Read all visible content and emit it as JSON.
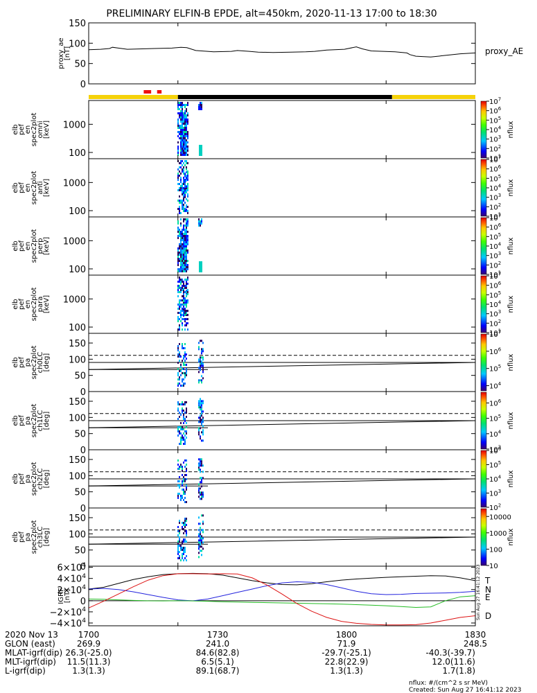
{
  "title": "PRELIMINARY ELFIN-B EPDE, alt=450km, 2020-11-13 17:00 to 18:30",
  "colors": {
    "region_yellow": "#f5d20a",
    "region_black": "#000000",
    "sci_zone_red": "#ee1111",
    "T": "#000000",
    "N": "#2222dd",
    "E": "#22bb22",
    "D": "#dd1111"
  },
  "time_axis": {
    "start": 1700,
    "end": 1830,
    "ticks": [
      "1700",
      "1730",
      "1800",
      "1830"
    ],
    "tick_values": [
      1700,
      1730,
      1800,
      1830
    ]
  },
  "region_bar": [
    {
      "from": 1700,
      "to": 1730,
      "color": "region_yellow"
    },
    {
      "from": 1730,
      "to": 1802,
      "color": "region_black"
    },
    {
      "from": 1802,
      "to": 1830,
      "color": "region_yellow"
    }
  ],
  "sci_zones": [
    {
      "from": 1718.5,
      "to": 1721.0
    },
    {
      "from": 1723.0,
      "to": 1724.5
    }
  ],
  "chart_data": [
    {
      "type": "line",
      "id": "proxy_ae",
      "ylabel": [
        "proxy_ae",
        "[nT]"
      ],
      "legend": "proxy_AE",
      "ylim": [
        0,
        150
      ],
      "yticks": [
        "0",
        "50",
        "100",
        "150"
      ],
      "ytick_values": [
        0,
        50,
        100,
        150
      ],
      "x": [
        1700,
        1704,
        1707,
        1708,
        1710,
        1713,
        1718,
        1722,
        1728,
        1731,
        1733,
        1736,
        1742,
        1748,
        1750,
        1752,
        1754,
        1757,
        1762,
        1768,
        1773,
        1776,
        1780,
        1786,
        1790,
        1792,
        1795,
        1799,
        1803,
        1807,
        1808,
        1810,
        1815,
        1820,
        1825,
        1830
      ],
      "series": [
        {
          "values": [
            84,
            85,
            87,
            90,
            88,
            85,
            86,
            87,
            88,
            90,
            89,
            82,
            79,
            80,
            82,
            81,
            80,
            78,
            77,
            78,
            79,
            80,
            83,
            85,
            91,
            86,
            81,
            80,
            79,
            76,
            72,
            68,
            66,
            70,
            74,
            76
          ]
        }
      ]
    },
    {
      "type": "heatmap",
      "id": "omni",
      "ylabel": [
        "elb",
        "pef",
        "en",
        "spec2plot",
        "omni",
        "[keV]"
      ],
      "yscale": "log",
      "ylim": [
        60,
        7000
      ],
      "yticks": [
        "100",
        "1000"
      ],
      "ytick_values": [
        100,
        1000
      ],
      "colorbar": {
        "label": "nflux",
        "scale": "log",
        "range": [
          10,
          10000000
        ],
        "ticks": [
          "10^7",
          "10^6",
          "10^5",
          "10^4",
          "10^3",
          "10^2",
          "10^1"
        ],
        "tick_values": [
          10000000,
          1000000,
          100000,
          10000,
          1000,
          100,
          10
        ]
      }
    },
    {
      "type": "heatmap",
      "id": "anti",
      "ylabel": [
        "elb",
        "pef",
        "en",
        "spec2plot",
        "anti",
        "[keV]"
      ],
      "yscale": "log",
      "ylim": [
        60,
        7000
      ],
      "yticks": [
        "100",
        "1000"
      ],
      "ytick_values": [
        100,
        1000
      ],
      "colorbar": {
        "label": "nflux",
        "scale": "log",
        "range": [
          10,
          10000000
        ],
        "ticks": [
          "10^7",
          "10^6",
          "10^5",
          "10^4",
          "10^3",
          "10^2",
          "10^1"
        ],
        "tick_values": [
          10000000,
          1000000,
          100000,
          10000,
          1000,
          100,
          10
        ]
      }
    },
    {
      "type": "heatmap",
      "id": "perp",
      "ylabel": [
        "elb",
        "pef",
        "en",
        "spec2plot",
        "perp",
        "[keV]"
      ],
      "yscale": "log",
      "ylim": [
        60,
        7000
      ],
      "yticks": [
        "100",
        "1000"
      ],
      "ytick_values": [
        100,
        1000
      ],
      "colorbar": {
        "label": "nflux",
        "scale": "log",
        "range": [
          10,
          10000000
        ],
        "ticks": [
          "10^7",
          "10^6",
          "10^5",
          "10^4",
          "10^3",
          "10^2",
          "10^1"
        ],
        "tick_values": [
          10000000,
          1000000,
          100000,
          10000,
          1000,
          100,
          10
        ]
      }
    },
    {
      "type": "heatmap",
      "id": "para",
      "ylabel": [
        "elb",
        "pef",
        "en",
        "spec2plot",
        "para",
        "[keV]"
      ],
      "yscale": "log",
      "ylim": [
        60,
        7000
      ],
      "yticks": [
        "100",
        "1000"
      ],
      "ytick_values": [
        100,
        1000
      ],
      "colorbar": {
        "label": "nflux",
        "scale": "log",
        "range": [
          10,
          10000000
        ],
        "ticks": [
          "10^7",
          "10^6",
          "10^5",
          "10^4",
          "10^3",
          "10^2",
          "10^1"
        ],
        "tick_values": [
          10000000,
          1000000,
          100000,
          10000,
          1000,
          100,
          10
        ]
      }
    },
    {
      "type": "heatmap",
      "id": "ch0LC",
      "ylabel": [
        "elb",
        "pef",
        "pa",
        "spec2plot",
        "ch0LC",
        "[deg]"
      ],
      "yscale": "linear",
      "ylim": [
        0,
        180
      ],
      "yticks": [
        "0",
        "50",
        "100",
        "150"
      ],
      "ytick_values": [
        0,
        50,
        100,
        150
      ],
      "colorbar": {
        "label": "nflux",
        "scale": "log",
        "range": [
          5000,
          10000000
        ],
        "ticks": [
          "10^7",
          "10^6",
          "10^5",
          "10^4"
        ],
        "tick_values": [
          10000000,
          1000000,
          100000,
          10000
        ]
      }
    },
    {
      "type": "heatmap",
      "id": "ch1LC",
      "ylabel": [
        "elb",
        "pef",
        "pa",
        "spec2plot",
        "ch1LC",
        "[deg]"
      ],
      "yscale": "linear",
      "ylim": [
        0,
        180
      ],
      "yticks": [
        "0",
        "50",
        "100",
        "150"
      ],
      "ytick_values": [
        0,
        50,
        100,
        150
      ],
      "colorbar": {
        "label": "nflux",
        "scale": "log",
        "range": [
          1000,
          5000000
        ],
        "ticks": [
          "10^6",
          "10^5",
          "10^4",
          "10^3"
        ],
        "tick_values": [
          1000000,
          100000,
          10000,
          1000
        ]
      }
    },
    {
      "type": "heatmap",
      "id": "ch2LC",
      "ylabel": [
        "elb",
        "pef",
        "pa",
        "spec2plot",
        "ch2LC",
        "[deg]"
      ],
      "yscale": "linear",
      "ylim": [
        0,
        180
      ],
      "yticks": [
        "0",
        "50",
        "100",
        "150"
      ],
      "ytick_values": [
        0,
        50,
        100,
        150
      ],
      "colorbar": {
        "label": "nflux",
        "scale": "log",
        "range": [
          100,
          1000000
        ],
        "ticks": [
          "10^6",
          "10^5",
          "10^4",
          "10^3",
          "10^2"
        ],
        "tick_values": [
          1000000,
          100000,
          10000,
          1000,
          100
        ]
      }
    },
    {
      "type": "heatmap",
      "id": "ch3LC",
      "ylabel": [
        "elb",
        "pef",
        "pa",
        "spec2plot",
        "ch3LC",
        "[deg]"
      ],
      "yscale": "linear",
      "ylim": [
        0,
        180
      ],
      "yticks": [
        "0",
        "50",
        "100",
        "150"
      ],
      "ytick_values": [
        0,
        50,
        100,
        150
      ],
      "colorbar": {
        "label": "nflux",
        "scale": "log",
        "range": [
          10,
          30000
        ],
        "ticks": [
          "10000",
          "1000",
          "100",
          "10"
        ],
        "tick_values": [
          10000,
          1000,
          100,
          10
        ]
      }
    },
    {
      "type": "line",
      "id": "igrf",
      "ylabel": [
        "IGRF",
        "[nT]"
      ],
      "ylim": [
        -45000,
        62000
      ],
      "yticks": [
        "6×10^4",
        "4×10^4",
        "2×10^4",
        "0",
        "−2×10^4",
        "−4×10^4"
      ],
      "ytick_values": [
        60000,
        40000,
        20000,
        0,
        -20000,
        -40000
      ],
      "x": [
        1700,
        1705,
        1710,
        1715,
        1720,
        1725,
        1730,
        1735,
        1740,
        1745,
        1750,
        1755,
        1760,
        1765,
        1770,
        1775,
        1780,
        1785,
        1790,
        1795,
        1800,
        1805,
        1810,
        1815,
        1820,
        1825,
        1830
      ],
      "series": [
        {
          "name": "T",
          "color": "T",
          "values": [
            21000,
            24000,
            31000,
            38000,
            43000,
            47000,
            48500,
            49000,
            48500,
            46000,
            41000,
            36000,
            32000,
            29000,
            28500,
            30500,
            34000,
            37000,
            39000,
            40500,
            42000,
            43000,
            44000,
            45000,
            44500,
            41000,
            36000
          ]
        },
        {
          "name": "N",
          "color": "N",
          "values": [
            21000,
            22000,
            20000,
            16000,
            11000,
            6000,
            1500,
            -200,
            3000,
            9000,
            15000,
            21000,
            27000,
            32000,
            34000,
            33000,
            29000,
            23000,
            17000,
            12500,
            11000,
            11500,
            13000,
            13500,
            14000,
            15000,
            17000
          ]
        },
        {
          "name": "E",
          "color": "E",
          "values": [
            3000,
            2500,
            1500,
            500,
            -200,
            -300,
            0,
            -300,
            -1000,
            -2000,
            -2500,
            -3000,
            -3500,
            -4000,
            -4500,
            -5000,
            -5500,
            -6000,
            -7000,
            -8000,
            -9000,
            -10500,
            -12000,
            -11000,
            0,
            7000,
            9000
          ]
        },
        {
          "name": "D",
          "color": "D",
          "values": [
            -13000,
            -1000,
            12000,
            25000,
            37000,
            45000,
            48500,
            48500,
            48000,
            48500,
            48000,
            41000,
            28000,
            12000,
            -5000,
            -19000,
            -30000,
            -37000,
            -40500,
            -42500,
            -43500,
            -43500,
            -43000,
            -40000,
            -35000,
            -30000,
            -27000
          ]
        }
      ]
    }
  ],
  "timestamp_vertical": "Sun Aug 27 16:41:12 2023",
  "ephemeris": {
    "date": "2020 Nov 13",
    "rows": [
      {
        "label": "GLON (east)",
        "values": [
          "269.9",
          "241.0",
          "71.9",
          "248.5"
        ]
      },
      {
        "label": "MLAT-igrf(dip)",
        "values": [
          "26.3(-25.0)",
          "84.6(82.8)",
          "-29.7(-25.1)",
          "-40.3(-39.7)"
        ]
      },
      {
        "label": "MLT-igrf(dip)",
        "values": [
          "11.5(11.3)",
          "6.5(5.1)",
          "22.8(22.9)",
          "12.0(11.6)"
        ]
      },
      {
        "label": "L-igrf(dip)",
        "values": [
          "1.3(1.3)",
          "89.1(68.7)",
          "1.3(1.3)",
          "1.7(1.8)"
        ]
      }
    ]
  },
  "footer": {
    "units": "nflux: #/(cm^2 s sr MeV)",
    "created": "Created: Sun Aug 27 16:41:12 2023"
  }
}
